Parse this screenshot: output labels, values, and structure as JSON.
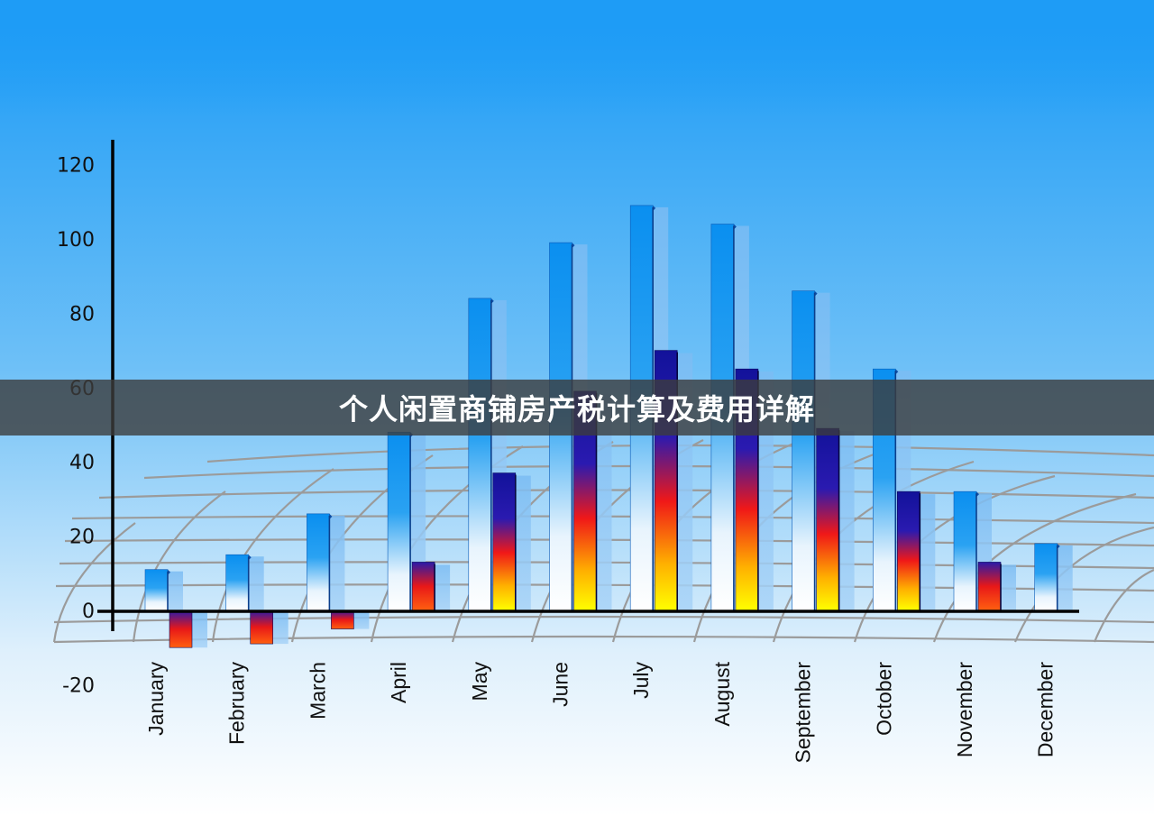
{
  "overlay": {
    "caption": "个人闲置商铺房产税计算及费用详解"
  },
  "chart_data": {
    "type": "bar",
    "categories": [
      "January",
      "February",
      "March",
      "April",
      "May",
      "June",
      "July",
      "August",
      "September",
      "October",
      "November",
      "December"
    ],
    "series": [
      {
        "values": [
          11,
          15,
          26,
          48,
          84,
          99,
          109,
          104,
          86,
          65,
          32,
          18
        ]
      },
      {
        "values": [
          -10,
          -9,
          -5,
          13,
          37,
          59,
          70,
          65,
          49,
          32,
          13,
          null
        ]
      }
    ],
    "yticks": [
      120,
      100,
      80,
      60,
      40,
      20,
      0,
      -20
    ],
    "ylim": [
      -20,
      120
    ],
    "grid": true,
    "colors": {
      "sky_top": "#1a9af5",
      "sky_bottom": "#ffffff",
      "bar_blue": "#1192f0",
      "bar_dark": "#1c1c9e",
      "bar_red": "#f02020",
      "bar_yellow": "#ffff00",
      "shadow": "#8cc4f5",
      "axis": "#000000",
      "grid": "#9a9a9a"
    }
  }
}
